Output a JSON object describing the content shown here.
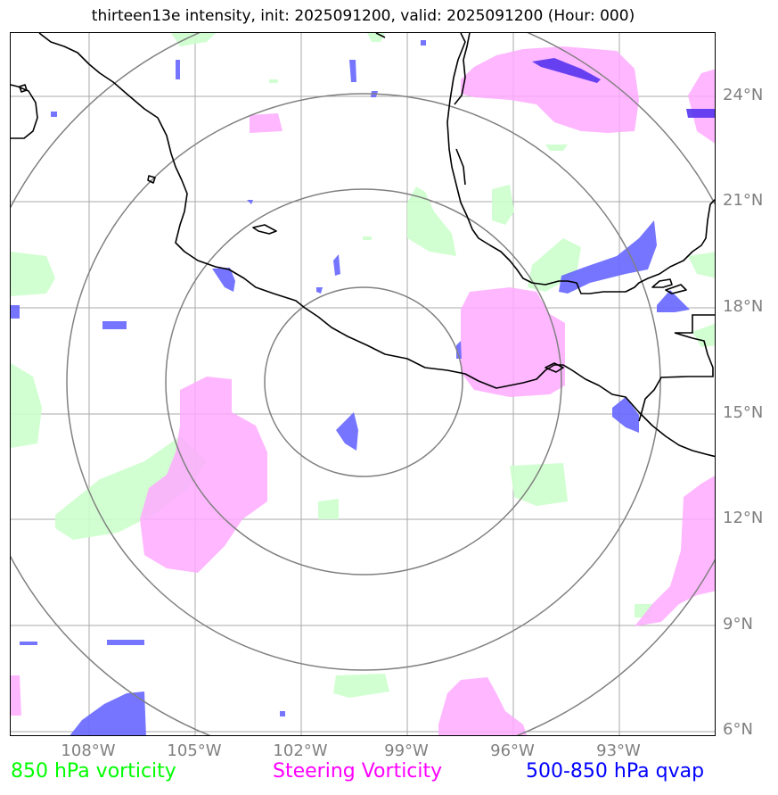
{
  "title": "thirteen13e intensity, init: 2025091200, valid: 2025091200 (Hour: 000)",
  "map": {
    "lat_labels": [
      "24°N",
      "21°N",
      "18°N",
      "15°N",
      "12°N",
      "9°N",
      "6°N"
    ],
    "lon_labels": [
      "108°W",
      "105°W",
      "102°W",
      "99°W",
      "96°W",
      "93°W"
    ]
  },
  "legend": {
    "items": [
      {
        "label": "850 hPa vorticity",
        "color": "#00ff00"
      },
      {
        "label": "Steering Vorticity",
        "color": "#ff00ff"
      },
      {
        "label": "500-850 hPa qvap",
        "color": "#0000ff"
      }
    ]
  },
  "colors": {
    "vorticity_850": "#ccffcc",
    "steering_vorticity": "#ffb3ff",
    "qvap": "#6a6aff",
    "grid": "#a0a0a0",
    "range_rings": "#808080",
    "coastline": "#000000"
  }
}
